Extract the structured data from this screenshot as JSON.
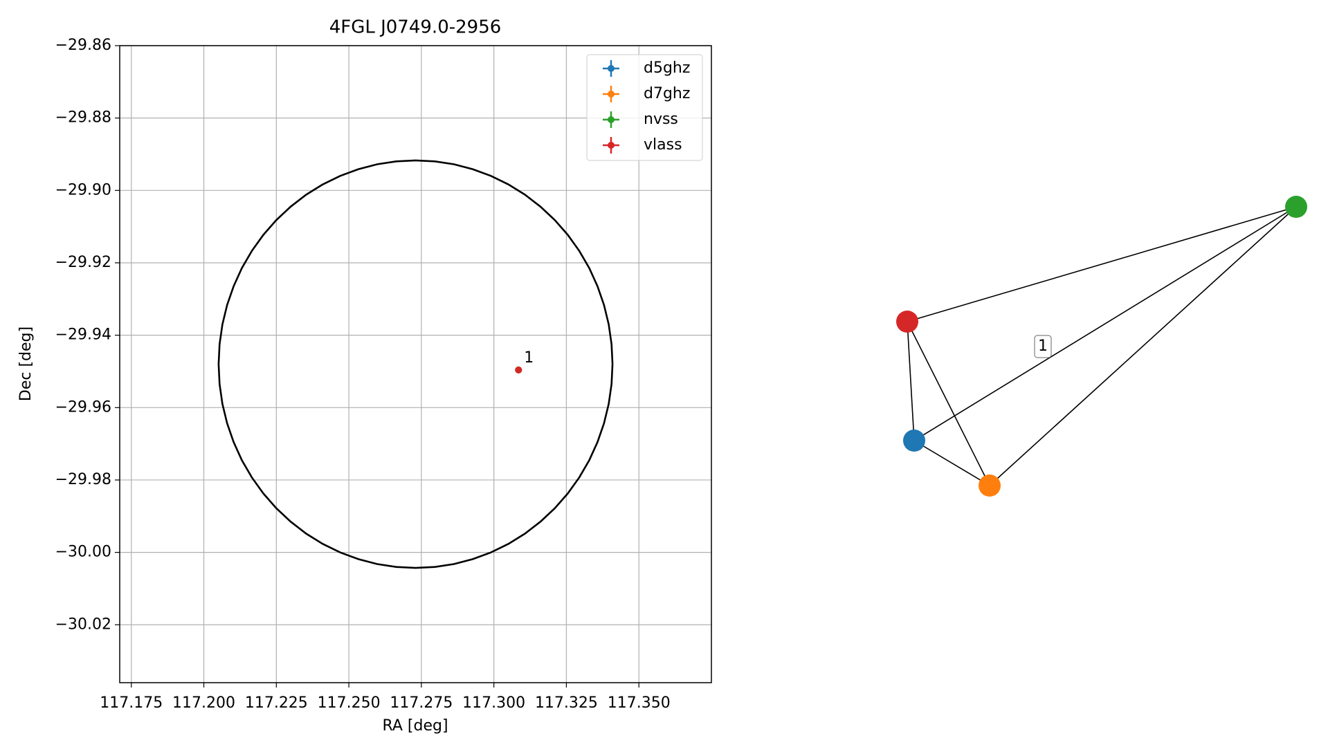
{
  "chart_data": [
    {
      "type": "scatter",
      "title": "4FGL J0749.0-2956",
      "xlabel": "RA [deg]",
      "ylabel": "Dec [deg]",
      "xlim": [
        117.171,
        117.375
      ],
      "ylim": [
        -30.036,
        -29.86
      ],
      "xticks": [
        117.175,
        {
          "value": 117.2,
          "label": "117.200"
        },
        117.225,
        {
          "value": 117.25,
          "label": "117.250"
        },
        117.275,
        {
          "value": 117.3,
          "label": "117.300"
        },
        117.325,
        {
          "value": 117.35,
          "label": "117.350"
        }
      ],
      "yticks": [
        {
          "value": -29.86,
          "label": "−29.86"
        },
        {
          "value": -29.88,
          "label": "−29.88"
        },
        {
          "value": -29.9,
          "label": "−29.90"
        },
        {
          "value": -29.92,
          "label": "−29.92"
        },
        {
          "value": -29.94,
          "label": "−29.94"
        },
        {
          "value": -29.96,
          "label": "−29.96"
        },
        {
          "value": -29.98,
          "label": "−29.98"
        },
        {
          "value": -30.0,
          "label": "−30.00"
        },
        {
          "value": -30.02,
          "label": "−30.02"
        }
      ],
      "grid": true,
      "legend": "upper right",
      "circle": {
        "ra": 117.273,
        "dec": -29.948,
        "ra_radius": 0.0679,
        "dec_radius": 0.0563,
        "color": "#000000"
      },
      "series": [
        {
          "name": "d5ghz",
          "color": "#1f77b4",
          "x": [
            117.3085
          ],
          "values": [
            -29.9496
          ]
        },
        {
          "name": "d7ghz",
          "color": "#ff7f0e",
          "x": [
            117.3085
          ],
          "values": [
            -29.9496
          ]
        },
        {
          "name": "nvss",
          "color": "#2ca02c",
          "x": [
            117.3085
          ],
          "values": [
            -29.9496
          ]
        },
        {
          "name": "vlass",
          "color": "#d62728",
          "x": [
            117.3085
          ],
          "values": [
            -29.9496
          ]
        }
      ],
      "annotations": [
        {
          "text": "1",
          "x": 117.3085,
          "y": -29.9496
        }
      ]
    },
    {
      "type": "network",
      "nodes": [
        {
          "color": "#d62728"
        },
        {
          "color": "#1f77b4"
        },
        {
          "color": "#ff7f0e"
        },
        {
          "color": "#2ca02c"
        }
      ],
      "edges": [
        [
          0,
          3
        ],
        [
          0,
          1
        ],
        [
          0,
          2
        ],
        [
          1,
          2
        ],
        [
          1,
          3
        ],
        [
          2,
          3
        ]
      ],
      "edge_labels": [
        {
          "edge": 4,
          "label": "1"
        }
      ]
    }
  ]
}
